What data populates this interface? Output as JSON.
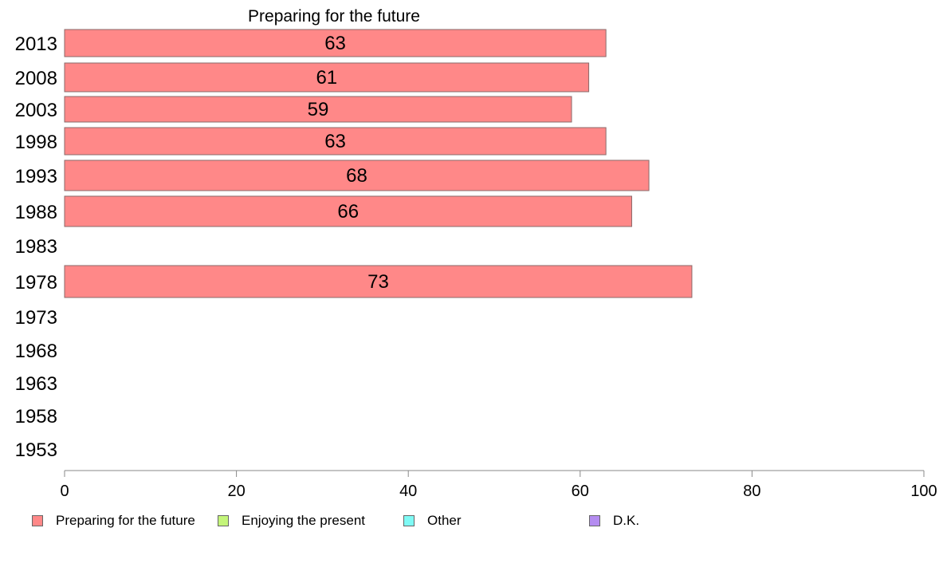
{
  "chart_data": {
    "type": "bar",
    "orientation": "horizontal",
    "title": "Preparing for the future",
    "categories": [
      "2013",
      "2008",
      "2003",
      "1998",
      "1993",
      "1988",
      "1983",
      "1978",
      "1973",
      "1968",
      "1963",
      "1958",
      "1953"
    ],
    "series": [
      {
        "name": "Preparing for the future",
        "color": "#ff8888",
        "values": [
          63,
          61,
          59,
          63,
          68,
          66,
          null,
          73,
          null,
          null,
          null,
          null,
          null
        ]
      },
      {
        "name": "Enjoying the present",
        "color": "#c4f57a",
        "values": [
          null,
          null,
          null,
          null,
          null,
          null,
          null,
          null,
          null,
          null,
          null,
          null,
          null
        ]
      },
      {
        "name": "Other",
        "color": "#7ffaf5",
        "values": [
          null,
          null,
          null,
          null,
          null,
          null,
          null,
          null,
          null,
          null,
          null,
          null,
          null
        ]
      },
      {
        "name": "D.K.",
        "color": "#b48cf0",
        "values": [
          null,
          null,
          null,
          null,
          null,
          null,
          null,
          null,
          null,
          null,
          null,
          null,
          null
        ]
      }
    ],
    "xlim": [
      0,
      100
    ],
    "xticks": [
      0,
      20,
      40,
      60,
      80,
      100
    ],
    "xlabel": "",
    "ylabel": "",
    "grid": false,
    "legend_position": "bottom"
  }
}
